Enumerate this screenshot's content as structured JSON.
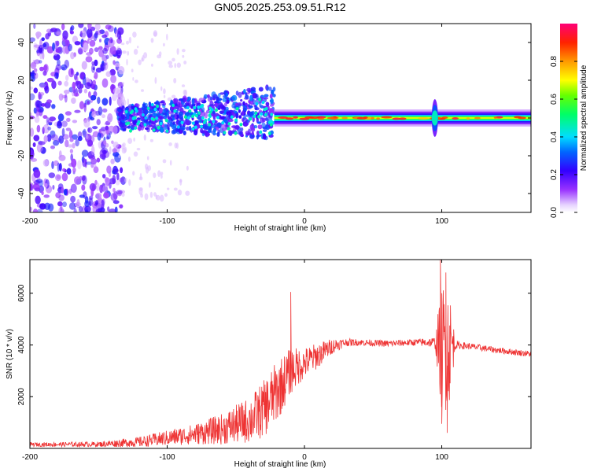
{
  "title": "GN05.2025.253.09.51.R12",
  "chart_data": [
    {
      "type": "heatmap",
      "name": "spectrogram",
      "xlabel": "Height of straight line (km)",
      "ylabel": "Frequency (Hz)",
      "xlim": [
        -200,
        165
      ],
      "ylim": [
        -50,
        50
      ],
      "xticks": [
        -200,
        -100,
        0,
        100
      ],
      "yticks": [
        -40,
        -20,
        0,
        20,
        40
      ],
      "colorbar": {
        "label": "Normalized spectral amplitude",
        "range": [
          0.0,
          1.0
        ],
        "ticks": [
          0.0,
          0.2,
          0.4,
          0.6,
          0.8
        ],
        "tick_labels": [
          "0.0",
          "0.2",
          "0.4",
          "0.6",
          "0.8"
        ]
      },
      "regions": [
        {
          "x": [
            -200,
            -135
          ],
          "description_level": 0.15
        },
        {
          "x": [
            -135,
            -22
          ],
          "description_level": 0.25
        },
        {
          "x": [
            -22,
            165
          ],
          "description_level": 0.8
        }
      ]
    },
    {
      "type": "line",
      "name": "snr",
      "xlabel": "Height of straight line (km)",
      "ylabel": "SNR (10 * v/v)",
      "xlim": [
        -200,
        165
      ],
      "ylim": [
        0,
        7300
      ],
      "xticks": [
        -200,
        -100,
        0,
        100
      ],
      "yticks": [
        2000,
        4000,
        6000
      ],
      "color": "#ee3333",
      "envelope": {
        "x": [
          -200,
          -150,
          -120,
          -100,
          -80,
          -60,
          -40,
          -30,
          -20,
          -10,
          0,
          10,
          20,
          30,
          40,
          60,
          80,
          95,
          100,
          105,
          110,
          120,
          140,
          165
        ],
        "mid": [
          150,
          160,
          250,
          400,
          550,
          750,
          1100,
          1500,
          2200,
          3000,
          3300,
          3600,
          3950,
          4100,
          4100,
          4050,
          4100,
          4100,
          3900,
          4000,
          4000,
          3950,
          3800,
          3650
        ],
        "amp": [
          80,
          100,
          200,
          300,
          400,
          600,
          900,
          1100,
          1200,
          900,
          600,
          500,
          300,
          150,
          130,
          130,
          130,
          200,
          2500,
          2500,
          150,
          130,
          120,
          120
        ]
      },
      "spikes": [
        {
          "x": -10,
          "y": 6050
        },
        {
          "x": 99,
          "y": 7300
        },
        {
          "x": 100,
          "y": 950
        },
        {
          "x": 103,
          "y": 6800
        },
        {
          "x": 104,
          "y": 600
        }
      ]
    }
  ]
}
